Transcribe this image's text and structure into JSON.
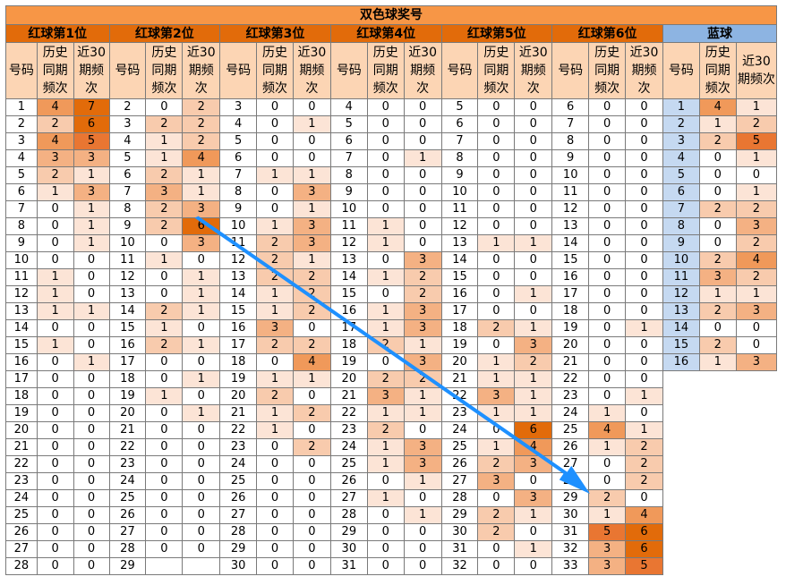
{
  "title": "双色球奖号",
  "groups": [
    "红球第1位",
    "红球第2位",
    "红球第3位",
    "红球第4位",
    "红球第5位",
    "红球第6位",
    "蓝球"
  ],
  "col_headers": [
    "号码",
    "历史同期频次",
    "近30期频次"
  ],
  "colors": {
    "level0": "#ffffff",
    "level1": "#fce4d6",
    "level2": "#f8cbad",
    "level3": "#f4b183",
    "level4": "#f0995a",
    "level5": "#e97632",
    "level6": "#e26b0a",
    "blue_num": "#c5d9f1",
    "arrow": "#1e90ff",
    "title_bg": "#f79646",
    "group_bg": "#e26b0a"
  },
  "sections": [
    {
      "rows": [
        [
          "1",
          "4",
          "7"
        ],
        [
          "2",
          "2",
          "6"
        ],
        [
          "3",
          "4",
          "5"
        ],
        [
          "4",
          "3",
          "3"
        ],
        [
          "5",
          "2",
          "1"
        ],
        [
          "6",
          "1",
          "3"
        ],
        [
          "7",
          "0",
          "1"
        ],
        [
          "8",
          "0",
          "1"
        ],
        [
          "9",
          "0",
          "1"
        ],
        [
          "10",
          "0",
          "0"
        ],
        [
          "11",
          "1",
          "0"
        ],
        [
          "12",
          "1",
          "0"
        ],
        [
          "13",
          "1",
          "1"
        ],
        [
          "14",
          "0",
          "0"
        ],
        [
          "15",
          "1",
          "0"
        ],
        [
          "16",
          "0",
          "1"
        ],
        [
          "17",
          "0",
          "0"
        ],
        [
          "18",
          "0",
          "0"
        ],
        [
          "19",
          "0",
          "0"
        ],
        [
          "20",
          "0",
          "0"
        ],
        [
          "21",
          "0",
          "0"
        ],
        [
          "22",
          "0",
          "0"
        ],
        [
          "23",
          "0",
          "0"
        ],
        [
          "24",
          "0",
          "0"
        ],
        [
          "25",
          "0",
          "0"
        ],
        [
          "26",
          "0",
          "0"
        ],
        [
          "27",
          "0",
          "0"
        ],
        [
          "28",
          "0",
          "0"
        ]
      ]
    },
    {
      "rows": [
        [
          "2",
          "0",
          "2"
        ],
        [
          "3",
          "2",
          "2"
        ],
        [
          "4",
          "1",
          "2"
        ],
        [
          "5",
          "1",
          "4"
        ],
        [
          "6",
          "2",
          "1"
        ],
        [
          "7",
          "3",
          "1"
        ],
        [
          "8",
          "2",
          "3"
        ],
        [
          "9",
          "2",
          "6"
        ],
        [
          "10",
          "0",
          "3"
        ],
        [
          "11",
          "1",
          "0"
        ],
        [
          "12",
          "0",
          "1"
        ],
        [
          "13",
          "0",
          "1"
        ],
        [
          "14",
          "2",
          "1"
        ],
        [
          "15",
          "1",
          "0"
        ],
        [
          "16",
          "2",
          "1"
        ],
        [
          "17",
          "0",
          "0"
        ],
        [
          "18",
          "0",
          "1"
        ],
        [
          "19",
          "1",
          "0"
        ],
        [
          "20",
          "0",
          "1"
        ],
        [
          "21",
          "0",
          "0"
        ],
        [
          "22",
          "0",
          "0"
        ],
        [
          "23",
          "0",
          "0"
        ],
        [
          "24",
          "0",
          "0"
        ],
        [
          "25",
          "0",
          "0"
        ],
        [
          "26",
          "0",
          "0"
        ],
        [
          "27",
          "0",
          "0"
        ],
        [
          "28",
          "0",
          "0"
        ],
        [
          "29",
          "",
          ""
        ]
      ]
    },
    {
      "rows": [
        [
          "3",
          "0",
          "0"
        ],
        [
          "4",
          "0",
          "1"
        ],
        [
          "5",
          "0",
          "0"
        ],
        [
          "6",
          "0",
          "0"
        ],
        [
          "7",
          "1",
          "1"
        ],
        [
          "8",
          "0",
          "3"
        ],
        [
          "9",
          "0",
          "1"
        ],
        [
          "10",
          "1",
          "3"
        ],
        [
          "11",
          "2",
          "3"
        ],
        [
          "12",
          "2",
          "1"
        ],
        [
          "13",
          "2",
          "2"
        ],
        [
          "14",
          "1",
          "2"
        ],
        [
          "15",
          "1",
          "2"
        ],
        [
          "16",
          "3",
          "0"
        ],
        [
          "17",
          "2",
          "2"
        ],
        [
          "18",
          "0",
          "4"
        ],
        [
          "19",
          "1",
          "1"
        ],
        [
          "20",
          "2",
          "0"
        ],
        [
          "21",
          "1",
          "2"
        ],
        [
          "22",
          "1",
          "0"
        ],
        [
          "23",
          "0",
          "2"
        ],
        [
          "24",
          "0",
          "0"
        ],
        [
          "25",
          "0",
          "0"
        ],
        [
          "26",
          "0",
          "0"
        ],
        [
          "27",
          "0",
          "0"
        ],
        [
          "28",
          "0",
          "0"
        ],
        [
          "29",
          "0",
          "0"
        ],
        [
          "30",
          "0",
          "0"
        ]
      ]
    },
    {
      "rows": [
        [
          "4",
          "0",
          "0"
        ],
        [
          "5",
          "0",
          "0"
        ],
        [
          "6",
          "0",
          "0"
        ],
        [
          "7",
          "0",
          "1"
        ],
        [
          "8",
          "0",
          "0"
        ],
        [
          "9",
          "0",
          "0"
        ],
        [
          "10",
          "0",
          "0"
        ],
        [
          "11",
          "1",
          "0"
        ],
        [
          "12",
          "1",
          "0"
        ],
        [
          "13",
          "0",
          "3"
        ],
        [
          "14",
          "1",
          "2"
        ],
        [
          "15",
          "0",
          "2"
        ],
        [
          "16",
          "1",
          "3"
        ],
        [
          "17",
          "1",
          "3"
        ],
        [
          "18",
          "2",
          "1"
        ],
        [
          "19",
          "0",
          "3"
        ],
        [
          "20",
          "2",
          "2"
        ],
        [
          "21",
          "3",
          "1"
        ],
        [
          "22",
          "1",
          "1"
        ],
        [
          "23",
          "2",
          "0"
        ],
        [
          "24",
          "1",
          "3"
        ],
        [
          "25",
          "1",
          "3"
        ],
        [
          "26",
          "0",
          "1"
        ],
        [
          "27",
          "1",
          "0"
        ],
        [
          "28",
          "0",
          "1"
        ],
        [
          "29",
          "0",
          "0"
        ],
        [
          "30",
          "0",
          "0"
        ],
        [
          "31",
          "0",
          "0"
        ]
      ]
    },
    {
      "rows": [
        [
          "5",
          "0",
          "0"
        ],
        [
          "6",
          "0",
          "0"
        ],
        [
          "7",
          "0",
          "0"
        ],
        [
          "8",
          "0",
          "0"
        ],
        [
          "9",
          "0",
          "0"
        ],
        [
          "10",
          "0",
          "0"
        ],
        [
          "11",
          "0",
          "0"
        ],
        [
          "12",
          "0",
          "0"
        ],
        [
          "13",
          "1",
          "1"
        ],
        [
          "14",
          "0",
          "0"
        ],
        [
          "15",
          "0",
          "0"
        ],
        [
          "16",
          "0",
          "1"
        ],
        [
          "17",
          "0",
          "0"
        ],
        [
          "18",
          "2",
          "1"
        ],
        [
          "19",
          "0",
          "3"
        ],
        [
          "20",
          "1",
          "2"
        ],
        [
          "21",
          "1",
          "1"
        ],
        [
          "22",
          "3",
          "1"
        ],
        [
          "23",
          "1",
          "1"
        ],
        [
          "24",
          "0",
          "6"
        ],
        [
          "25",
          "1",
          "4"
        ],
        [
          "26",
          "2",
          "3"
        ],
        [
          "27",
          "3",
          "0"
        ],
        [
          "28",
          "0",
          "3"
        ],
        [
          "29",
          "2",
          "1"
        ],
        [
          "30",
          "2",
          "0"
        ],
        [
          "31",
          "0",
          "1"
        ],
        [
          "32",
          "0",
          "0"
        ]
      ]
    },
    {
      "rows": [
        [
          "6",
          "0",
          "0"
        ],
        [
          "7",
          "0",
          "0"
        ],
        [
          "8",
          "0",
          "0"
        ],
        [
          "9",
          "0",
          "0"
        ],
        [
          "10",
          "0",
          "0"
        ],
        [
          "11",
          "0",
          "0"
        ],
        [
          "12",
          "0",
          "0"
        ],
        [
          "13",
          "0",
          "0"
        ],
        [
          "14",
          "0",
          "0"
        ],
        [
          "15",
          "0",
          "0"
        ],
        [
          "16",
          "0",
          "0"
        ],
        [
          "17",
          "0",
          "0"
        ],
        [
          "18",
          "0",
          "0"
        ],
        [
          "19",
          "0",
          "1"
        ],
        [
          "20",
          "0",
          "0"
        ],
        [
          "21",
          "0",
          "0"
        ],
        [
          "22",
          "0",
          "0"
        ],
        [
          "23",
          "0",
          "1"
        ],
        [
          "24",
          "1",
          "0"
        ],
        [
          "25",
          "4",
          "1"
        ],
        [
          "26",
          "1",
          "2"
        ],
        [
          "27",
          "0",
          "2"
        ],
        [
          "28",
          "0",
          "2"
        ],
        [
          "29",
          "2",
          "0"
        ],
        [
          "30",
          "1",
          "4"
        ],
        [
          "31",
          "5",
          "6"
        ],
        [
          "32",
          "3",
          "6"
        ],
        [
          "33",
          "3",
          "5"
        ]
      ]
    },
    {
      "rows": [
        [
          "1",
          "4",
          "1"
        ],
        [
          "2",
          "1",
          "2"
        ],
        [
          "3",
          "2",
          "5"
        ],
        [
          "4",
          "0",
          "1"
        ],
        [
          "5",
          "0",
          "0"
        ],
        [
          "6",
          "0",
          "1"
        ],
        [
          "7",
          "2",
          "2"
        ],
        [
          "8",
          "0",
          "3"
        ],
        [
          "9",
          "0",
          "2"
        ],
        [
          "10",
          "2",
          "4"
        ],
        [
          "11",
          "3",
          "2"
        ],
        [
          "12",
          "1",
          "1"
        ],
        [
          "13",
          "2",
          "3"
        ],
        [
          "14",
          "0",
          "0"
        ],
        [
          "15",
          "2",
          "0"
        ],
        [
          "16",
          "1",
          "3"
        ]
      ]
    }
  ]
}
